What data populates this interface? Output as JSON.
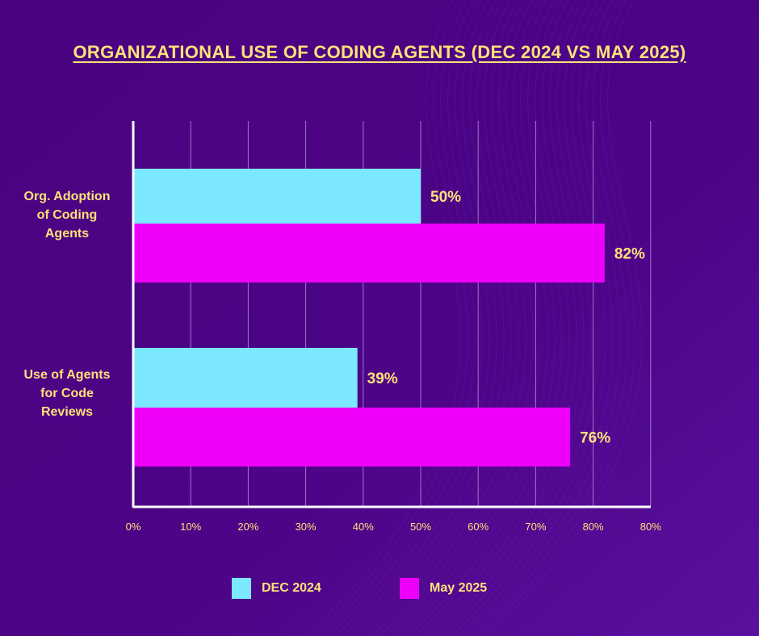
{
  "chart_data": {
    "type": "bar",
    "orientation": "horizontal",
    "title": "ORGANIZATIONAL USE OF CODING AGENTS (DEC 2024 VS MAY 2025)",
    "categories": [
      "Org. Adoption of Coding Agents",
      "Use of Agents for Code Reviews"
    ],
    "series": [
      {
        "name": "DEC 2024",
        "values": [
          50,
          39
        ],
        "color": "#7be8ff"
      },
      {
        "name": "May 2025",
        "values": [
          82,
          76
        ],
        "color": "#ee00f8"
      }
    ],
    "data_labels": [
      [
        "50%",
        "39%"
      ],
      [
        "82%",
        "76%"
      ]
    ],
    "x_ticks": [
      "0%",
      "10%",
      "20%",
      "30%",
      "40%",
      "50%",
      "60%",
      "70%",
      "80%",
      "80%"
    ],
    "xlim": [
      0,
      90
    ],
    "grid": true,
    "legend_position": "bottom",
    "text_color": "#ffe178",
    "background_color": "#4a0380"
  }
}
